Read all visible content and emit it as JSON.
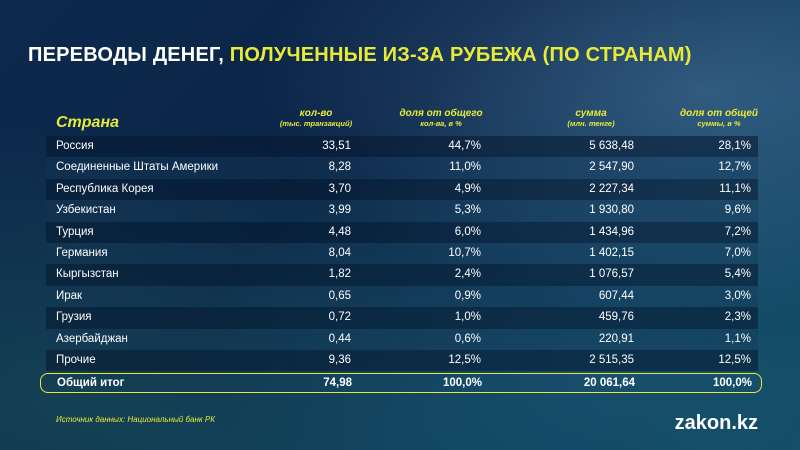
{
  "title": {
    "part1": "ПЕРЕВОДЫ ДЕНЕГ,",
    "part2": "ПОЛУЧЕННЫЕ ИЗ-ЗА РУБЕЖА (ПО СТРАНАМ)"
  },
  "chart_data": {
    "type": "table",
    "title": "ПЕРЕВОДЫ ДЕНЕГ, ПОЛУЧЕННЫЕ ИЗ-ЗА РУБЕЖА (ПО СТРАНАМ)",
    "columns": [
      {
        "main": "Страна",
        "sub": ""
      },
      {
        "main": "кол-во",
        "sub": "(тыс. транзакций)"
      },
      {
        "main": "доля от общего",
        "sub": "кол-ва, в %"
      },
      {
        "main": "сумма",
        "sub": "(млн. тенге)"
      },
      {
        "main": "доля от общей",
        "sub": "суммы, в %"
      }
    ],
    "rows": [
      [
        "Россия",
        "33,51",
        "44,7%",
        "5 638,48",
        "28,1%"
      ],
      [
        "Соединенные Штаты Америки",
        "8,28",
        "11,0%",
        "2 547,90",
        "12,7%"
      ],
      [
        "Республика Корея",
        "3,70",
        "4,9%",
        "2 227,34",
        "11,1%"
      ],
      [
        "Узбекистан",
        "3,99",
        "5,3%",
        "1 930,80",
        "9,6%"
      ],
      [
        "Турция",
        "4,48",
        "6,0%",
        "1 434,96",
        "7,2%"
      ],
      [
        "Германия",
        "8,04",
        "10,7%",
        "1 402,15",
        "7,0%"
      ],
      [
        "Кыргызстан",
        "1,82",
        "2,4%",
        "1 076,57",
        "5,4%"
      ],
      [
        "Ирак",
        "0,65",
        "0,9%",
        "607,44",
        "3,0%"
      ],
      [
        "Грузия",
        "0,72",
        "1,0%",
        "459,76",
        "2,3%"
      ],
      [
        "Азербайджан",
        "0,44",
        "0,6%",
        "220,91",
        "1,1%"
      ],
      [
        "Прочие",
        "9,36",
        "12,5%",
        "2 515,35",
        "12,5%"
      ]
    ],
    "total": [
      "Общий итог",
      "74,98",
      "100,0%",
      "20 061,64",
      "100,0%"
    ]
  },
  "source": "Источник данных: Национальный банк РК",
  "logo": "zakon.kz",
  "colors": {
    "accent": "#e8ea3a",
    "background": "#0d2a4e"
  }
}
